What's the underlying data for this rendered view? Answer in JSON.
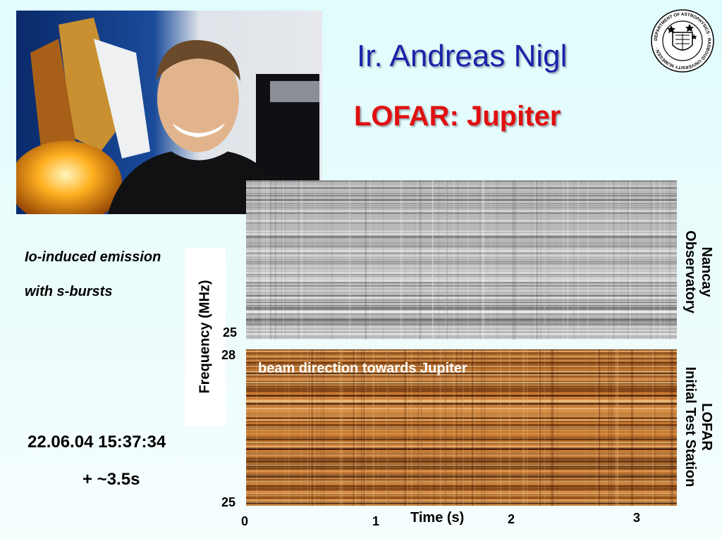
{
  "header": {
    "name": "Ir. Andreas Nigl",
    "topic": "LOFAR: Jupiter"
  },
  "logo": {
    "icon": "department-of-astrophysics-seal-icon",
    "text": "DEPARTMENT OF ASTROPHYSICS · RADBOUD UNIVERSITY NIJMEGEN ·"
  },
  "photo": {
    "icon": "portrait-photo-icon"
  },
  "description": {
    "line1": "Io-induced emission",
    "line2": "with s-bursts"
  },
  "timestamp": {
    "date": "22.06.04 15:37:34",
    "duration": "+ ~3.5s"
  },
  "plot": {
    "ylabel": "Frequency (MHz)",
    "nancay_ticks": [
      "25"
    ],
    "lofar_ticks": [
      "28",
      "25"
    ],
    "xlabel": "Time (s)",
    "x_ticks": [
      "0",
      "1",
      "2",
      "3"
    ],
    "beam_label": "beam direction  towards Jupiter",
    "panel_nancay_label": [
      "Nancay",
      "Observatory"
    ],
    "panel_lofar_label": [
      "LOFAR",
      "Initial Test Station"
    ],
    "colors": {
      "nancay": "#b8b8b8",
      "lofar": "#c87830",
      "title": "#1a24a8",
      "subtitle": "#e01010"
    }
  }
}
